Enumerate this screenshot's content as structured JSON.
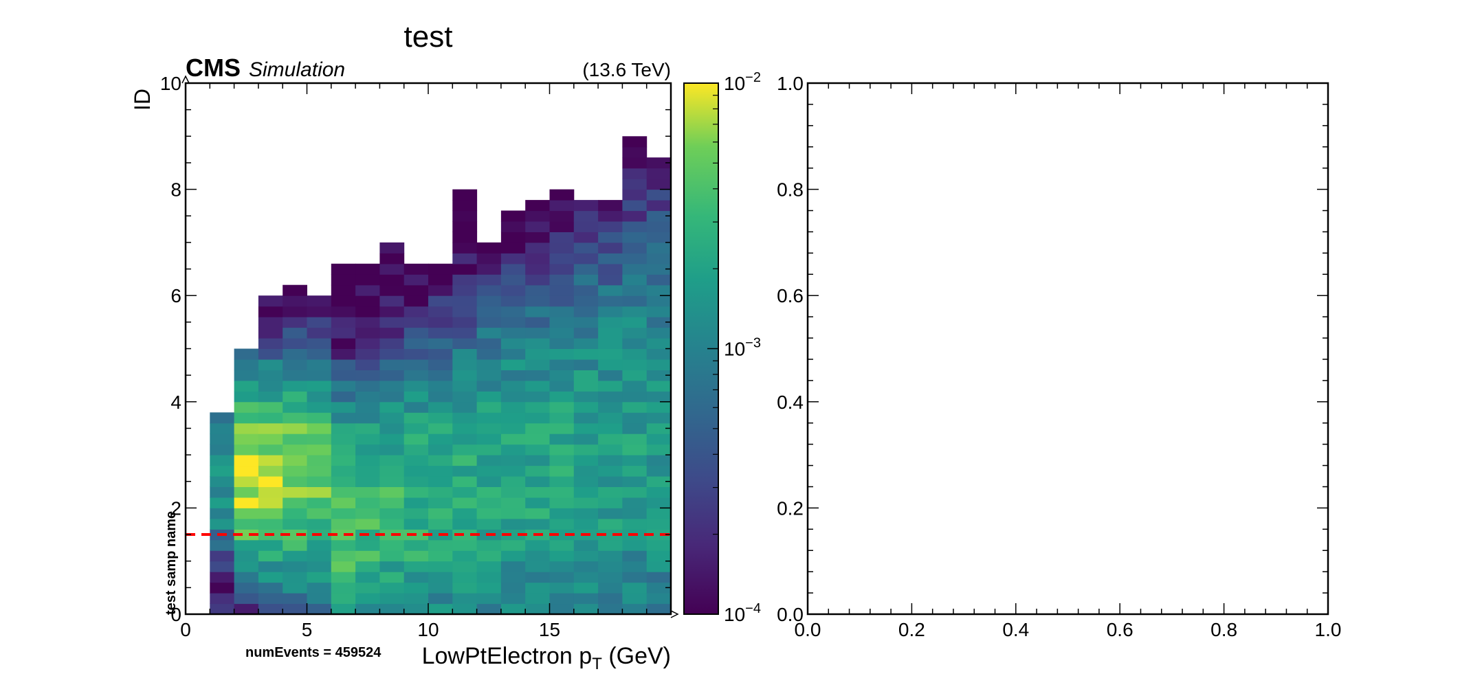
{
  "chart_data": [
    {
      "type": "heatmap",
      "title": "test",
      "experiment": "CMS",
      "status": "Simulation",
      "energy": "(13.6 TeV)",
      "xlabel": "LowPtElectron p",
      "xlabel_sub": "T",
      "xlabel_unit": " (GeV)",
      "ylabel": "ID",
      "xlim": [
        0,
        20
      ],
      "ylim": [
        0,
        10
      ],
      "xticks": [
        0,
        5,
        10,
        15
      ],
      "yticks": [
        0,
        2,
        4,
        6,
        8,
        10
      ],
      "x_bin_width": 1,
      "y_bin_width": 0.2,
      "colorbar": {
        "scale": "log",
        "range": [
          0.0001,
          0.01
        ],
        "tick_labels": [
          "10^{-4}",
          "10^{-3}",
          "10^{-2}"
        ],
        "colormap": "viridis"
      },
      "bins": [
        {
          "x": 1,
          "ymax": 3.7,
          "peak": 0.0016
        },
        {
          "x": 2,
          "ymax": 5.1,
          "peak": 0.0075
        },
        {
          "x": 3,
          "ymax": 5.9,
          "peak": 0.0065
        },
        {
          "x": 4,
          "ymax": 6.3,
          "peak": 0.0055
        },
        {
          "x": 5,
          "ymax": 5.9,
          "peak": 0.0045
        },
        {
          "x": 6,
          "ymax": 6.5,
          "peak": 0.004
        },
        {
          "x": 7,
          "ymax": 6.5,
          "peak": 0.0035
        },
        {
          "x": 8,
          "ymax": 7.0,
          "peak": 0.003
        },
        {
          "x": 9,
          "ymax": 6.6,
          "peak": 0.0028
        },
        {
          "x": 10,
          "ymax": 6.6,
          "peak": 0.0026
        },
        {
          "x": 11,
          "ymax": 7.9,
          "peak": 0.0024
        },
        {
          "x": 12,
          "ymax": 6.9,
          "peak": 0.0023
        },
        {
          "x": 13,
          "ymax": 7.5,
          "peak": 0.0022
        },
        {
          "x": 14,
          "ymax": 7.7,
          "peak": 0.0021
        },
        {
          "x": 15,
          "ymax": 7.9,
          "peak": 0.002
        },
        {
          "x": 16,
          "ymax": 7.7,
          "peak": 0.0019
        },
        {
          "x": 17,
          "ymax": 7.7,
          "peak": 0.0018
        },
        {
          "x": 18,
          "ymax": 9.1,
          "peak": 0.0018
        },
        {
          "x": 19,
          "ymax": 8.7,
          "peak": 0.0017
        }
      ],
      "reference_line": {
        "y": 1.5,
        "color": "#ff0000",
        "style": "dashed"
      },
      "sample_label": "test samp name",
      "num_events_label": "numEvents = 459524"
    },
    {
      "type": "scatter",
      "title": "",
      "xlim": [
        0,
        1
      ],
      "ylim": [
        0,
        1
      ],
      "xticks": [
        "0.0",
        "0.2",
        "0.4",
        "0.6",
        "0.8",
        "1.0"
      ],
      "yticks": [
        "0.0",
        "0.2",
        "0.4",
        "0.6",
        "0.8",
        "1.0"
      ],
      "series": []
    }
  ]
}
